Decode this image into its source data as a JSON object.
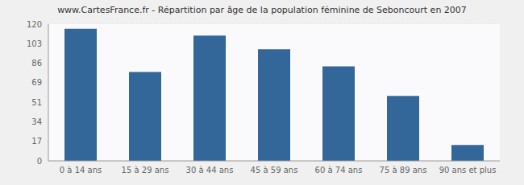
{
  "chart_data": {
    "type": "bar",
    "title": "www.CartesFrance.fr - Répartition par âge de la population féminine de Seboncourt en 2007",
    "categories": [
      "0 à 14 ans",
      "15 à 29 ans",
      "30 à 44 ans",
      "45 à 59 ans",
      "60 à 74 ans",
      "75 à 89 ans",
      "90 ans et plus"
    ],
    "values": [
      116,
      78,
      110,
      98,
      83,
      57,
      14
    ],
    "color": "#336699",
    "ylim": [
      0,
      120
    ],
    "yticks": [
      0,
      17,
      34,
      51,
      69,
      86,
      103,
      120
    ],
    "grid": true
  }
}
